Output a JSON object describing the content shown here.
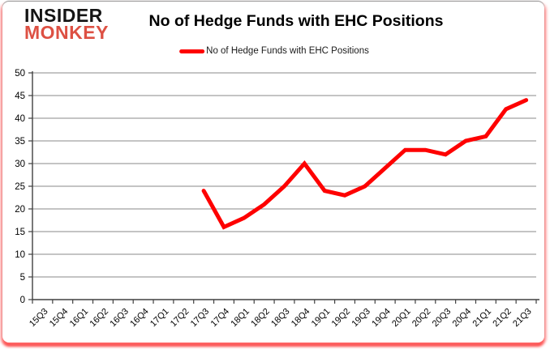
{
  "header": {
    "logo_line1": "INSIDER",
    "logo_line2": "MONKEY",
    "title": "No of Hedge Funds with EHC Positions"
  },
  "legend": {
    "label": "No of Hedge Funds with EHC Positions",
    "color": "#fe0000"
  },
  "colors": {
    "line": "#fe0000",
    "logo_accent": "#dd5043",
    "grid": "#8a8a8a",
    "axis": "#404040",
    "frame_glow": "#fc1e1e",
    "background": "#ffffff"
  },
  "chart_data": {
    "type": "line",
    "title": "No of Hedge Funds with EHC Positions",
    "legend_entries": [
      "No of Hedge Funds with EHC Positions"
    ],
    "legend_position": "top",
    "grid": true,
    "ylim": [
      0,
      50
    ],
    "ytick_step": 5,
    "categories": [
      "15Q3",
      "15Q4",
      "16Q1",
      "16Q2",
      "16Q3",
      "16Q4",
      "17Q1",
      "17Q2",
      "17Q3",
      "17Q4",
      "18Q1",
      "18Q2",
      "18Q3",
      "18Q4",
      "19Q1",
      "19Q2",
      "19Q3",
      "19Q4",
      "20Q1",
      "20Q2",
      "20Q3",
      "20Q4",
      "21Q1",
      "21Q2",
      "21Q3"
    ],
    "series": [
      {
        "name": "No of Hedge Funds with EHC Positions",
        "color": "#fe0000",
        "start_index": 8,
        "values": [
          24,
          16,
          18,
          21,
          25,
          30,
          24,
          23,
          25,
          29,
          33,
          33,
          32,
          35,
          36,
          42,
          44
        ]
      }
    ]
  }
}
